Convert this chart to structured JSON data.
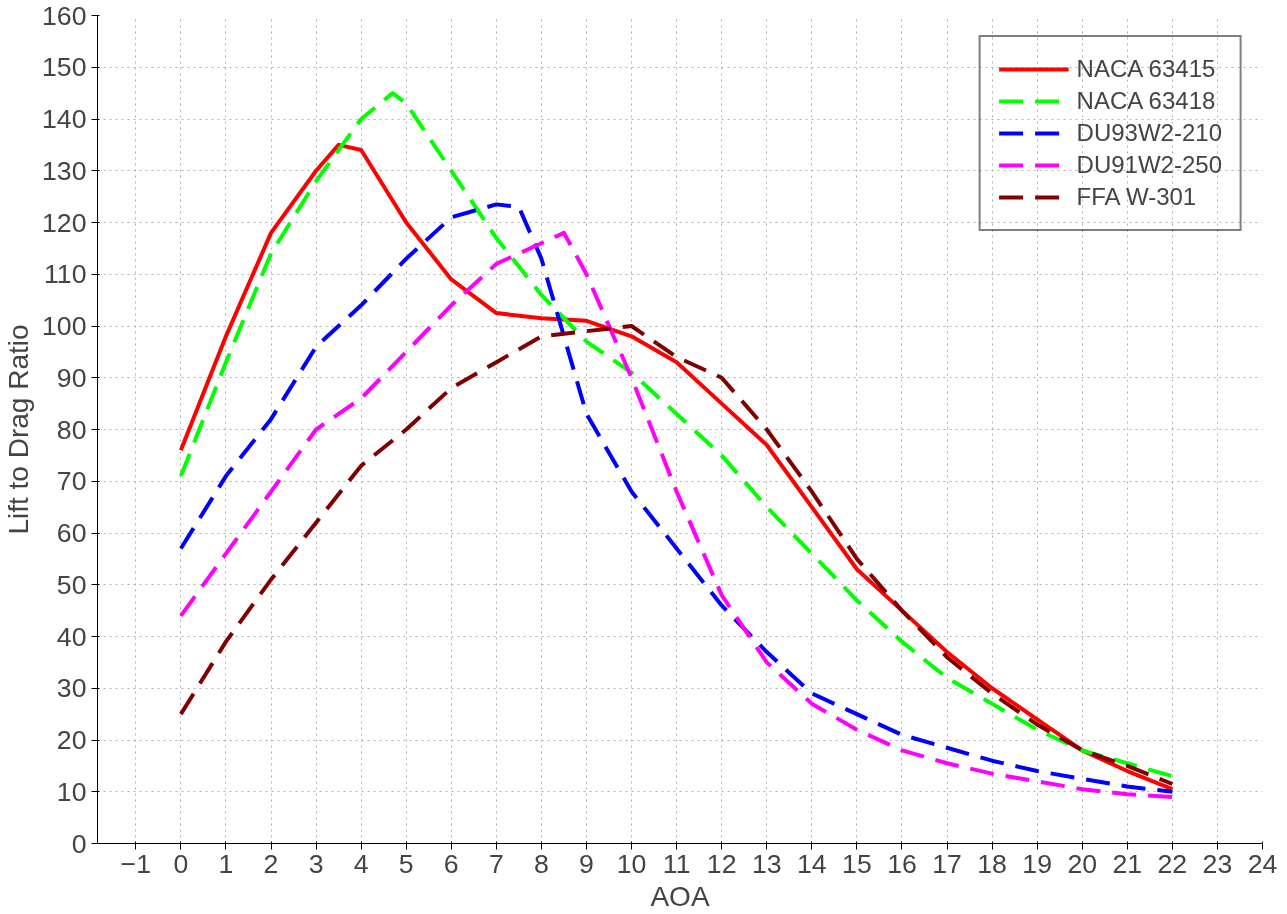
{
  "chart_data": {
    "type": "line",
    "xlabel": "AOA",
    "ylabel": "Lift to Drag Ratio",
    "xlim": [
      -1.85,
      24
    ],
    "ylim": [
      0,
      160
    ],
    "xticks": [
      -1,
      0,
      1,
      2,
      3,
      4,
      5,
      6,
      7,
      8,
      9,
      10,
      11,
      12,
      13,
      14,
      15,
      16,
      17,
      18,
      19,
      20,
      21,
      22,
      23,
      24
    ],
    "yticks": [
      0,
      10,
      20,
      30,
      40,
      50,
      60,
      70,
      80,
      90,
      100,
      110,
      120,
      130,
      140,
      150,
      160
    ],
    "grid": true,
    "legend": "top right",
    "marker": "none",
    "series": [
      {
        "name": "NACA 63415",
        "color": "#ff0000",
        "line_style": "solid",
        "x": [
          0,
          1,
          2,
          3,
          3.5,
          4,
          5,
          6,
          7,
          8,
          9,
          10,
          11,
          12,
          13,
          14,
          15,
          16,
          17,
          18,
          19,
          20,
          21,
          22
        ],
        "values": [
          76,
          98,
          118,
          130,
          135,
          134,
          120,
          109,
          102.5,
          101.5,
          101,
          98,
          93,
          85,
          77,
          65,
          53,
          45,
          37,
          30,
          24,
          18,
          14,
          10.5
        ]
      },
      {
        "name": "NACA 63418",
        "color": "#00ff00",
        "line_style": "dashed",
        "x": [
          0,
          1,
          2,
          3,
          4,
          4.7,
          5,
          6,
          7,
          8,
          9,
          10,
          11,
          12,
          13,
          14,
          15,
          16,
          17,
          18,
          19,
          20,
          21,
          22
        ],
        "values": [
          71,
          93,
          114,
          128,
          140,
          145,
          143,
          130,
          117,
          106,
          97,
          91,
          83,
          75,
          65,
          56,
          47,
          39,
          32,
          27,
          22,
          18,
          15.5,
          13
        ]
      },
      {
        "name": "DU93W2-210",
        "color": "#0000ff",
        "line_style": "dashed",
        "x": [
          0,
          1,
          2,
          3,
          4,
          5,
          6,
          7,
          7.5,
          8,
          9,
          10,
          11,
          12,
          13,
          14,
          15,
          16,
          17,
          18,
          19,
          20,
          21,
          22
        ],
        "values": [
          57,
          71,
          82,
          96,
          104,
          113,
          121,
          123.5,
          123,
          113,
          83,
          68,
          57,
          46,
          37,
          29,
          25,
          21,
          18.5,
          16,
          14,
          12.5,
          11,
          10
        ]
      },
      {
        "name": "DU91W2-250",
        "color": "#ff00ff",
        "line_style": "dashed",
        "x": [
          0,
          1,
          2,
          3,
          4,
          5,
          6,
          7,
          8,
          8.5,
          9,
          10,
          11,
          12,
          13,
          14,
          15,
          16,
          17,
          18,
          19,
          20,
          21,
          22
        ],
        "values": [
          44,
          56,
          68,
          80,
          86,
          95,
          104,
          112,
          116,
          118,
          110,
          90,
          68,
          48,
          35,
          27,
          22,
          18,
          15.5,
          13.5,
          12,
          10.5,
          9.5,
          9
        ]
      },
      {
        "name": "FFA W-301",
        "color": "#800000",
        "line_style": "dashed",
        "x": [
          0,
          1,
          2,
          3,
          4,
          5,
          6,
          7,
          8,
          9,
          10,
          11,
          12,
          13,
          14,
          15,
          16,
          17,
          18,
          19,
          20,
          21,
          22
        ],
        "values": [
          25,
          39,
          51,
          62,
          73,
          80,
          88,
          93,
          98,
          99,
          100,
          94,
          90,
          80,
          68,
          55,
          45,
          36,
          29,
          23,
          18,
          15,
          11.5
        ]
      }
    ]
  }
}
